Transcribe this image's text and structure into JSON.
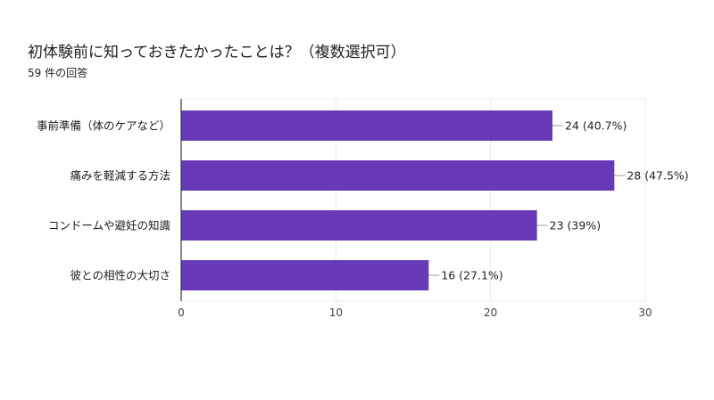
{
  "title": "初体験前に知っておきたかったことは？（複数選択可）",
  "subtitle": "59 件の回答",
  "chart_data": {
    "type": "bar",
    "orientation": "horizontal",
    "categories": [
      "事前準備（体のケアなど）",
      "痛みを軽減する方法",
      "コンドームや避妊の知識",
      "彼との相性の大切さ"
    ],
    "values": [
      24,
      28,
      23,
      16
    ],
    "data_labels": [
      "24 (40.7%)",
      "28 (47.5%)",
      "23 (39%)",
      "16 (27.1%)"
    ],
    "xlim": [
      0,
      30
    ],
    "xticks": [
      0,
      10,
      20,
      30
    ],
    "bar_color": "#673ab7",
    "grid": true
  }
}
